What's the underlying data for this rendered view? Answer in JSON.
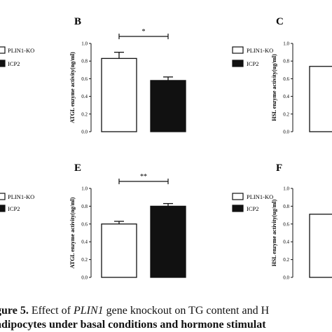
{
  "legend": {
    "series": [
      {
        "name": "PLIN1-KO",
        "fill": "#ffffff"
      },
      {
        "name": "ICP2",
        "fill": "#111111"
      }
    ]
  },
  "panels": {
    "B": {
      "letter": "B"
    },
    "C": {
      "letter": "C"
    },
    "E": {
      "letter": "E"
    },
    "F": {
      "letter": "F"
    }
  },
  "chart_data": [
    {
      "panel": "B",
      "type": "bar",
      "title": "",
      "ylabel": "ATGL enzyme activity(ng/ml)",
      "ylim": [
        0,
        1.0
      ],
      "yticks": [
        "0.0",
        "0.2",
        "0.4",
        "0.6",
        "0.8",
        "1.0"
      ],
      "series": [
        {
          "name": "PLIN1-KO",
          "value": 0.83,
          "error": 0.07
        },
        {
          "name": "ICP2",
          "value": 0.58,
          "error": 0.04
        }
      ],
      "significance": "*"
    },
    {
      "panel": "C",
      "type": "bar",
      "title": "",
      "ylabel": "HSL enzyme activity(ug/ml)",
      "ylim": [
        0,
        1.0
      ],
      "yticks": [
        "0.0",
        "0.2",
        "0.4",
        "0.6",
        "0.8",
        "1.0"
      ],
      "series": [
        {
          "name": "PLIN1-KO",
          "value": 0.74,
          "error": 0
        }
      ]
    },
    {
      "panel": "E",
      "type": "bar",
      "title": "",
      "ylabel": "ATGL enzyme activity(ng/ml)",
      "ylim": [
        0,
        1.0
      ],
      "yticks": [
        "0.0",
        "0.2",
        "0.4",
        "0.6",
        "0.8",
        "1.0"
      ],
      "series": [
        {
          "name": "PLIN1-KO",
          "value": 0.6,
          "error": 0.03
        },
        {
          "name": "ICP2",
          "value": 0.8,
          "error": 0.03
        }
      ],
      "significance": "**"
    },
    {
      "panel": "F",
      "type": "bar",
      "title": "",
      "ylabel": "HSL enzyme activity(ug/ml)",
      "ylim": [
        0,
        1.0
      ],
      "yticks": [
        "0.0",
        "0.2",
        "0.4",
        "0.6",
        "0.8",
        "1.0"
      ],
      "series": [
        {
          "name": "PLIN1-KO",
          "value": 0.71,
          "error": 0
        }
      ]
    }
  ],
  "caption": {
    "prefix": "gure 5.",
    "text_before": " Effect of ",
    "gene": "PLIN1",
    "text_after": " gene knockout on TG content and H",
    "line2": "adipocytes under basal conditions and hormone stimulat"
  }
}
